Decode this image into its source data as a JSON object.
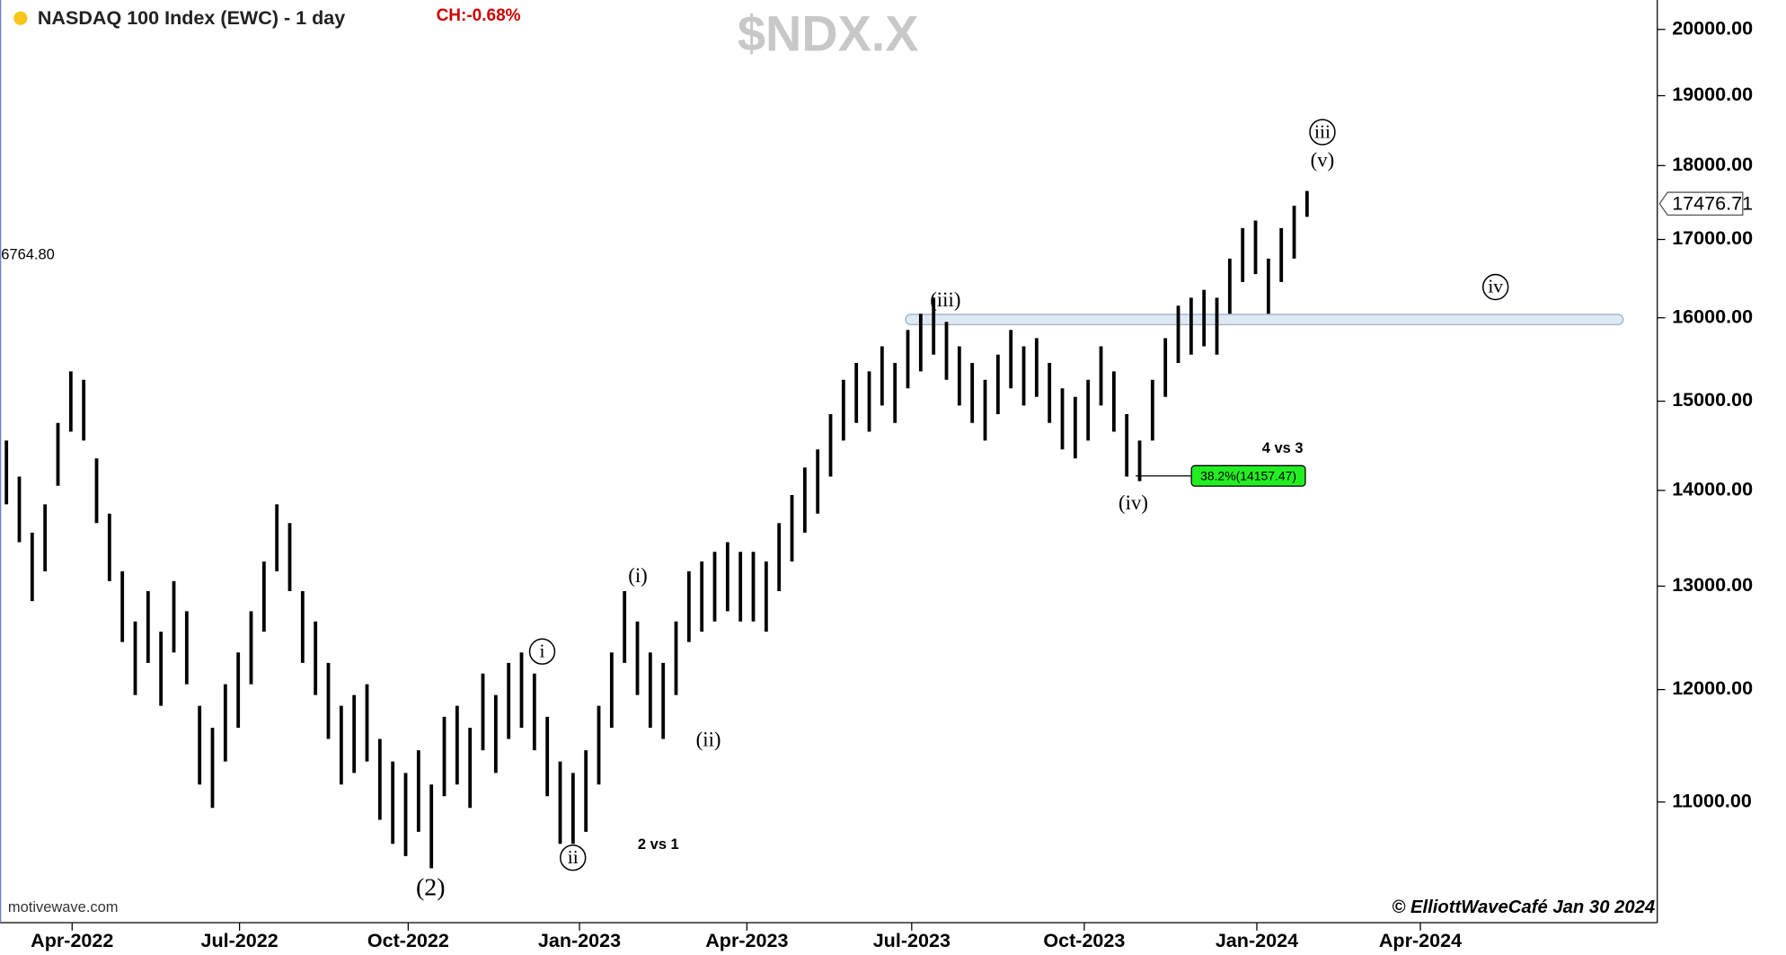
{
  "chart_data": {
    "type": "ohlc",
    "title": "NASDAQ 100 Index (EWC) - 1 day",
    "change": "CH:-0.68%",
    "symbol": "$NDX.X",
    "left_note": "6764.80",
    "source": "motivewave.com",
    "copyright": "© ElliottWaveCafé Jan 30 2024",
    "last_price": {
      "value": 17476.71,
      "label": "17476.71"
    },
    "color": "#000000",
    "log_scale": true,
    "xlim": [
      -0.5,
      128.2
    ],
    "xticks": [
      {
        "value": 5.1,
        "label": "Apr-2022"
      },
      {
        "value": 18.1,
        "label": "Jul-2022"
      },
      {
        "value": 31.2,
        "label": "Oct-2022"
      },
      {
        "value": 44.5,
        "label": "Jan-2023"
      },
      {
        "value": 57.5,
        "label": "Apr-2023"
      },
      {
        "value": 70.3,
        "label": "Jul-2023"
      },
      {
        "value": 83.7,
        "label": "Oct-2023"
      },
      {
        "value": 97.1,
        "label": "Jan-2024"
      },
      {
        "value": 109.8,
        "label": "Apr-2024"
      }
    ],
    "ylim": [
      10020,
      20460
    ],
    "yticks": [
      {
        "value": 11000,
        "label": "11000.00"
      },
      {
        "value": 12000,
        "label": "12000.00"
      },
      {
        "value": 13000,
        "label": "13000.00"
      },
      {
        "value": 14000,
        "label": "14000.00"
      },
      {
        "value": 15000,
        "label": "15000.00"
      },
      {
        "value": 16000,
        "label": "16000.00"
      },
      {
        "value": 17000,
        "label": "17000.00"
      },
      {
        "value": 18000,
        "label": "18000.00"
      },
      {
        "value": 19000,
        "label": "19000.00"
      },
      {
        "value": 20000,
        "label": "20000.00"
      }
    ],
    "high": [
      14550,
      14150,
      13550,
      13850,
      14750,
      15350,
      15250,
      14350,
      13750,
      13150,
      12650,
      12950,
      12550,
      13050,
      12750,
      11850,
      11650,
      12050,
      12350,
      12750,
      13250,
      13850,
      13650,
      12950,
      12650,
      12250,
      11850,
      11950,
      12050,
      11550,
      11350,
      11250,
      11450,
      11150,
      11750,
      11850,
      11650,
      12150,
      11950,
      12250,
      12350,
      12150,
      11750,
      11350,
      11250,
      11450,
      11850,
      12350,
      12950,
      12650,
      12350,
      12250,
      12650,
      13150,
      13250,
      13350,
      13450,
      13350,
      13350,
      13250,
      13650,
      13950,
      14250,
      14450,
      14850,
      15250,
      15450,
      15350,
      15650,
      15450,
      15850,
      16050,
      16250,
      15950,
      15650,
      15450,
      15250,
      15550,
      15850,
      15650,
      15750,
      15450,
      15150,
      15050,
      15250,
      15650,
      15350,
      14850,
      14550,
      15250,
      15750,
      16150,
      16250,
      16350,
      16250,
      16750,
      17150,
      17250,
      16750,
      17150,
      17450,
      17650
    ],
    "low": [
      13850,
      13450,
      12850,
      13150,
      14050,
      14650,
      14550,
      13650,
      13050,
      12450,
      11950,
      12250,
      11850,
      12350,
      12050,
      11150,
      10950,
      11350,
      11650,
      12050,
      12550,
      13150,
      12950,
      12250,
      11950,
      11550,
      11150,
      11250,
      11350,
      10850,
      10650,
      10550,
      10750,
      10450,
      11050,
      11150,
      10950,
      11450,
      11250,
      11550,
      11650,
      11450,
      11050,
      10650,
      10650,
      10750,
      11150,
      11650,
      12250,
      11950,
      11650,
      11550,
      11950,
      12450,
      12550,
      12650,
      12750,
      12650,
      12650,
      12550,
      12950,
      13250,
      13550,
      13750,
      14150,
      14550,
      14750,
      14650,
      14950,
      14750,
      15150,
      15350,
      15550,
      15250,
      14950,
      14750,
      14550,
      14850,
      15150,
      14950,
      15050,
      14750,
      14450,
      14350,
      14550,
      14950,
      14650,
      14150,
      14100,
      14550,
      15050,
      15450,
      15550,
      15650,
      15550,
      16050,
      16450,
      16550,
      16050,
      16450,
      16750,
      17300
    ],
    "fib": {
      "label": "38.2%(14157.47)",
      "value": 14157.47
    },
    "wave_labels": [
      {
        "text": "(2)",
        "circled": false
      },
      {
        "text": "i",
        "circled": true
      },
      {
        "text": "ii",
        "circled": true
      },
      {
        "text": "(i)",
        "circled": false
      },
      {
        "text": "(ii)",
        "circled": false
      },
      {
        "text": "(iii)",
        "circled": false
      },
      {
        "text": "(iv)",
        "circled": false
      },
      {
        "text": "iii",
        "circled": true
      },
      {
        "text": "(v)",
        "circled": false
      },
      {
        "text": "iv",
        "circled": true
      }
    ],
    "notes": [
      "2 vs 1",
      "4 vs 3"
    ]
  }
}
